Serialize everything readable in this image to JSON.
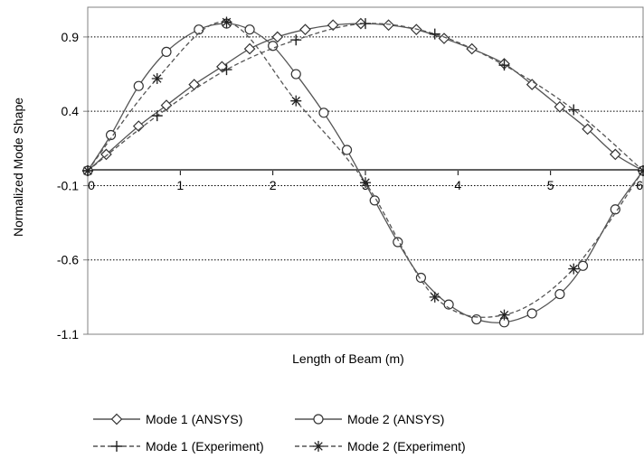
{
  "chart_data": {
    "type": "line",
    "title": "",
    "xlabel": "Length of Beam (m)",
    "ylabel": "Normalized Mode Shape",
    "xlim": [
      0,
      6
    ],
    "ylim": [
      -1.1,
      1.1
    ],
    "x_ticks": [
      "0",
      "1",
      "2",
      "3",
      "4",
      "5",
      "6"
    ],
    "y_ticks": [
      "0.9",
      "0.4",
      "-0.1",
      "-0.6",
      "-1.1"
    ],
    "grid": "horizontal dotted",
    "legend_position": "bottom",
    "series": [
      {
        "name": "Mode 1 (ANSYS)",
        "marker": "diamond",
        "line": "solid",
        "color": "#555555",
        "x": [
          0,
          0.2,
          0.55,
          0.85,
          1.15,
          1.45,
          1.75,
          2.05,
          2.35,
          2.65,
          2.95,
          3.25,
          3.55,
          3.85,
          4.15,
          4.5,
          4.8,
          5.1,
          5.4,
          5.7,
          6.0
        ],
        "y": [
          0,
          0.11,
          0.3,
          0.44,
          0.58,
          0.7,
          0.82,
          0.9,
          0.95,
          0.98,
          0.99,
          0.98,
          0.95,
          0.89,
          0.82,
          0.72,
          0.58,
          0.43,
          0.28,
          0.11,
          0
        ]
      },
      {
        "name": "Mode 2 (ANSYS)",
        "marker": "circle",
        "line": "solid",
        "color": "#555555",
        "x": [
          0,
          0.25,
          0.55,
          0.85,
          1.2,
          1.5,
          1.75,
          2.0,
          2.25,
          2.55,
          2.8,
          3.1,
          3.35,
          3.6,
          3.9,
          4.2,
          4.5,
          4.8,
          5.1,
          5.35,
          5.7,
          6.0
        ],
        "y": [
          0,
          0.24,
          0.57,
          0.8,
          0.95,
          0.99,
          0.95,
          0.84,
          0.65,
          0.39,
          0.14,
          -0.2,
          -0.48,
          -0.72,
          -0.9,
          -1.0,
          -1.02,
          -0.96,
          -0.83,
          -0.64,
          -0.26,
          0
        ]
      },
      {
        "name": "Mode 1 (Experiment)",
        "marker": "plus",
        "line": "dashed",
        "color": "#555555",
        "x": [
          0,
          0.75,
          1.5,
          2.25,
          3.0,
          3.75,
          4.5,
          5.25,
          6.0
        ],
        "y": [
          0,
          0.37,
          0.68,
          0.88,
          0.99,
          0.92,
          0.71,
          0.41,
          0
        ]
      },
      {
        "name": "Mode 2 (Experiment)",
        "marker": "asterisk",
        "line": "dashed",
        "color": "#555555",
        "x": [
          0,
          0.75,
          1.5,
          2.25,
          3.0,
          3.75,
          4.5,
          5.25,
          6.0
        ],
        "y": [
          0,
          0.62,
          1.0,
          0.47,
          -0.08,
          -0.85,
          -0.97,
          -0.66,
          0
        ]
      }
    ]
  }
}
